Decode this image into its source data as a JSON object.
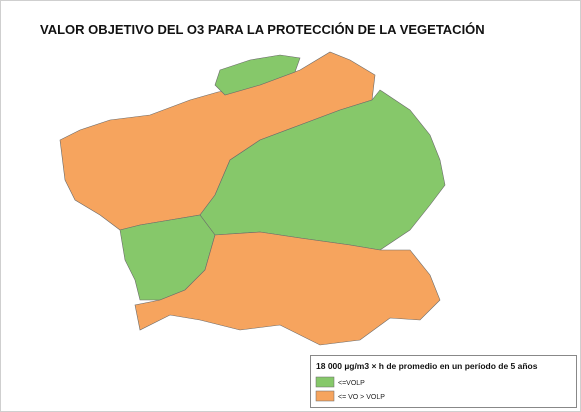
{
  "title": "VALOR OBJETIVO DEL O3 PARA LA PROTECCIÓN DE LA VEGETACIÓN",
  "legend": {
    "title": "18 000 µg/m3 × h de promedio en un período de 5 años",
    "items": [
      {
        "label": "<=VOLP",
        "color": "#86c86a"
      },
      {
        "label": "<= VO > VOLP",
        "color": "#f6a45e"
      }
    ]
  }
}
